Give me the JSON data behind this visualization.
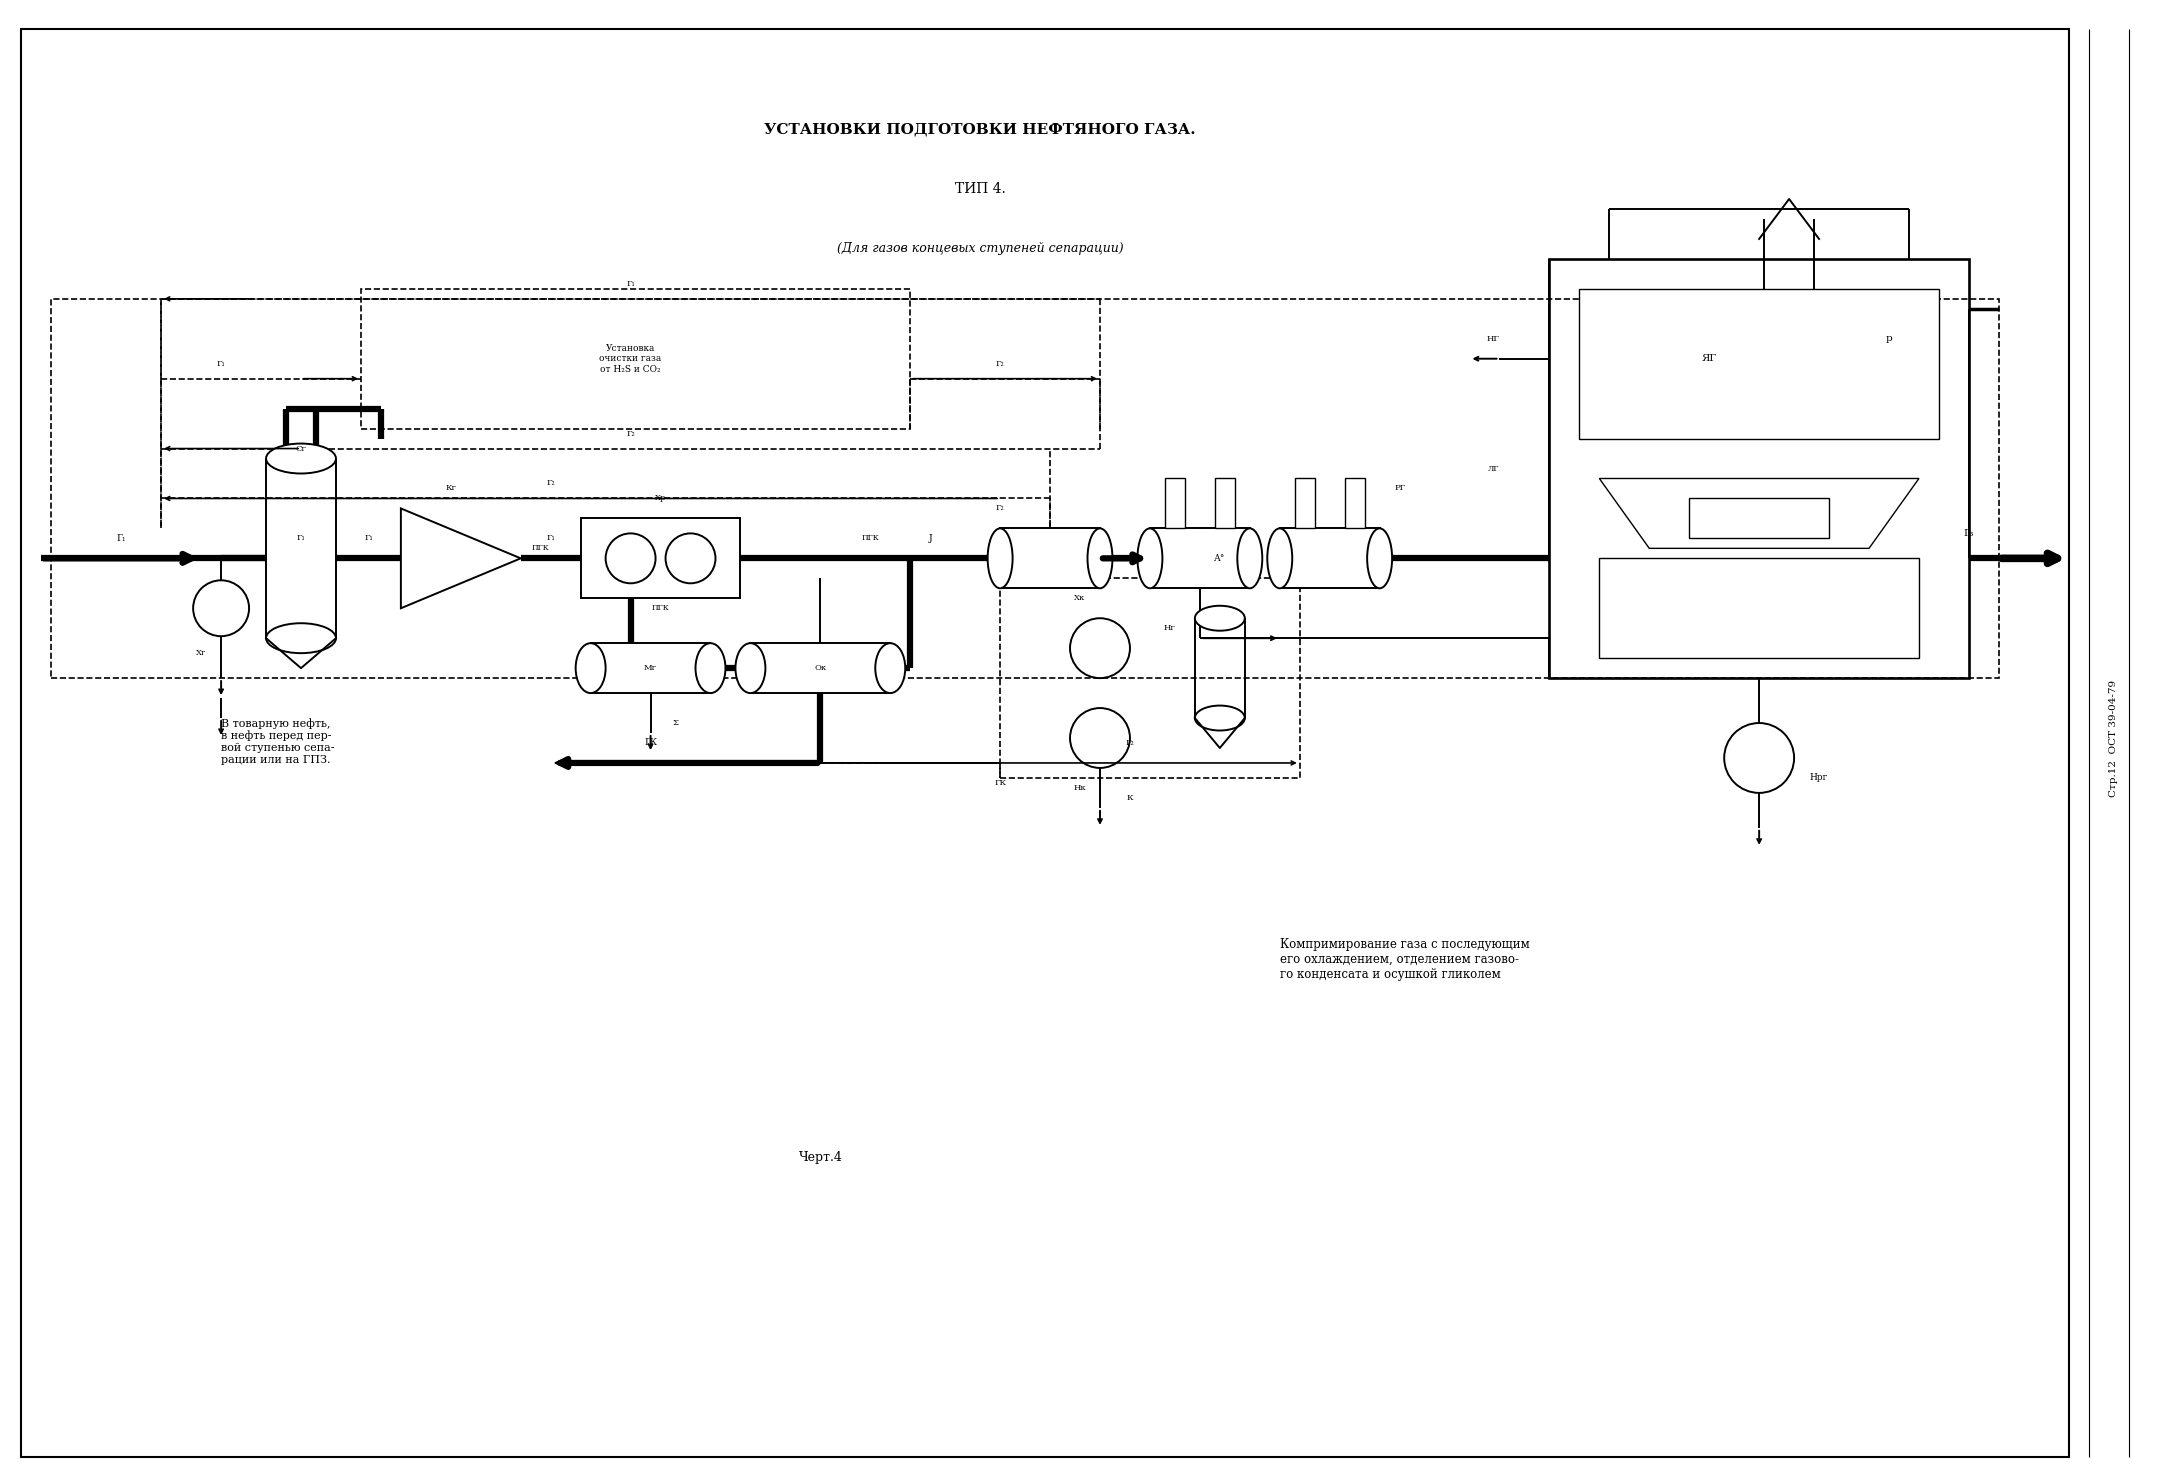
{
  "title1": "УСТАНОВКИ ПОДГОТОВКИ НЕФТЯНОГО ГАЗА.",
  "title2": "ТИП 4.",
  "title3": "(Для газов концевых ступеней сепарации)",
  "side_text": "Стр.12  ОСТ 39-04-79",
  "chert_label": "Черт.4",
  "note_left": "В товарную нефть,\nв нефть перед пер-\nвой ступенью сепа-\nрации или на ГПЗ.",
  "note_right": "Компримирование газа с последующим\nего охлаждением, отделением газово-\nго конденсата и осушкой гликолем",
  "bg_color": "#ffffff",
  "line_color": "#000000"
}
